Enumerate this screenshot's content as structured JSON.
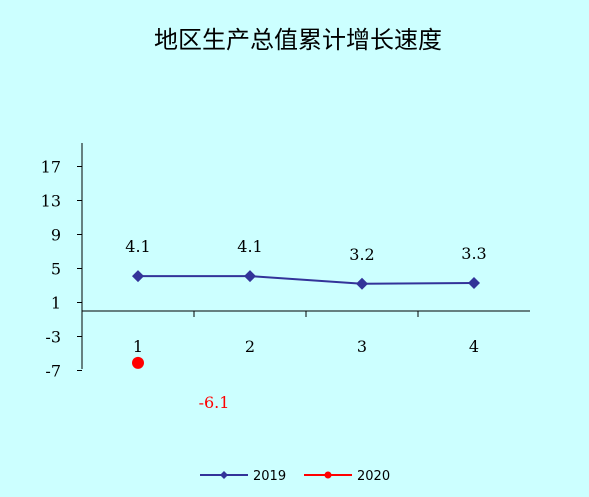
{
  "chart_data": {
    "type": "line",
    "title": "地区生产总值累计增长速度",
    "xlabel": "",
    "ylabel": "",
    "categories": [
      "1",
      "2",
      "3",
      "4"
    ],
    "ylim": [
      -7,
      21
    ],
    "y_ticks": [
      "17",
      "13",
      "9",
      "5",
      "1",
      "-3",
      "-7"
    ],
    "y_tick_values": [
      17,
      13,
      9,
      5,
      1,
      -3,
      -7
    ],
    "grid": false,
    "legend_position": "bottom",
    "series": [
      {
        "name": "2019",
        "values": [
          4.1,
          4.1,
          3.2,
          3.3
        ],
        "labels": [
          "4.1",
          "4.1",
          "3.2",
          "3.3"
        ],
        "color": "#333399",
        "marker": "diamond"
      },
      {
        "name": "2020",
        "values": [
          -6.1,
          null,
          null,
          null
        ],
        "labels": [
          "-6.1",
          null,
          null,
          null
        ],
        "color": "#ff0000",
        "marker": "circle"
      }
    ],
    "colors": {
      "background": "#ccffff",
      "axis": "#000000"
    }
  }
}
